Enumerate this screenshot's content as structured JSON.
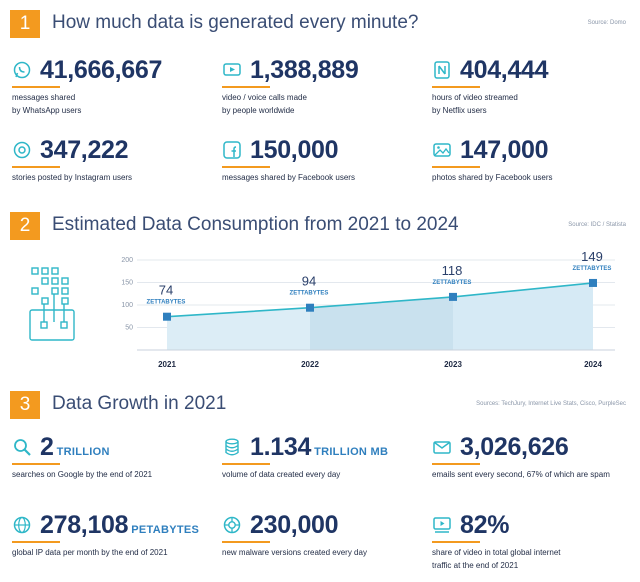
{
  "colors": {
    "accent": "#f39a1f",
    "navy": "#1f3564",
    "blue": "#2f7fbe",
    "teal": "#2fb7c8"
  },
  "sections": [
    {
      "number": "1",
      "title": "How much data is generated every minute?",
      "source": "Source: Domo"
    },
    {
      "number": "2",
      "title": "Estimated Data Consumption from 2021 to 2024",
      "source": "Source: IDC / Statista"
    },
    {
      "number": "3",
      "title": "Data Growth in 2021",
      "source": "Sources: TechJury, Internet Live Stats, Cisco, PurpleSec"
    }
  ],
  "minute_stats": [
    {
      "icon": "whatsapp-icon",
      "value": "41,666,667",
      "unit": "",
      "desc": "messages shared\nby WhatsApp users"
    },
    {
      "icon": "video-call-icon",
      "value": "1,388,889",
      "unit": "",
      "desc": "video / voice calls made\nby people worldwide"
    },
    {
      "icon": "netflix-icon",
      "value": "404,444",
      "unit": "",
      "desc": "hours of video streamed\nby Netflix users"
    },
    {
      "icon": "instagram-icon",
      "value": "347,222",
      "unit": "",
      "desc": "stories posted by Instagram users"
    },
    {
      "icon": "facebook-icon",
      "value": "150,000",
      "unit": "",
      "desc": "messages shared by Facebook users"
    },
    {
      "icon": "photo-icon",
      "value": "147,000",
      "unit": "",
      "desc": "photos shared by Facebook users"
    }
  ],
  "growth_stats": [
    {
      "icon": "search-icon",
      "value": "2",
      "unit": "TRILLION",
      "desc": "searches on Google by the end of 2021"
    },
    {
      "icon": "database-icon",
      "value": "1.134",
      "unit": "TRILLION MB",
      "desc": "volume of data created every day"
    },
    {
      "icon": "email-icon",
      "value": "3,026,626",
      "unit": "",
      "desc": "emails sent every second, 67% of which are spam"
    },
    {
      "icon": "globe-icon",
      "value": "278,108",
      "unit": "PETABYTES",
      "desc": "global IP data per month by the end of 2021"
    },
    {
      "icon": "malware-icon",
      "value": "230,000",
      "unit": "",
      "desc": "new malware versions created every day"
    },
    {
      "icon": "video-player-icon",
      "value": "82%",
      "unit": "",
      "desc": "share of video in total global internet\ntraffic at the end of 2021"
    }
  ],
  "chart_data": {
    "type": "area",
    "categories": [
      "2021",
      "2022",
      "2023",
      "2024"
    ],
    "series": [
      {
        "values": [
          74,
          94,
          118,
          149
        ]
      }
    ],
    "value_unit": "ZETTABYTES",
    "yticks": [
      "200",
      "150",
      "100",
      "50"
    ],
    "ylim": [
      0,
      200
    ],
    "grid": true,
    "title": "Estimated Data Consumption from 2021 to 2024"
  }
}
